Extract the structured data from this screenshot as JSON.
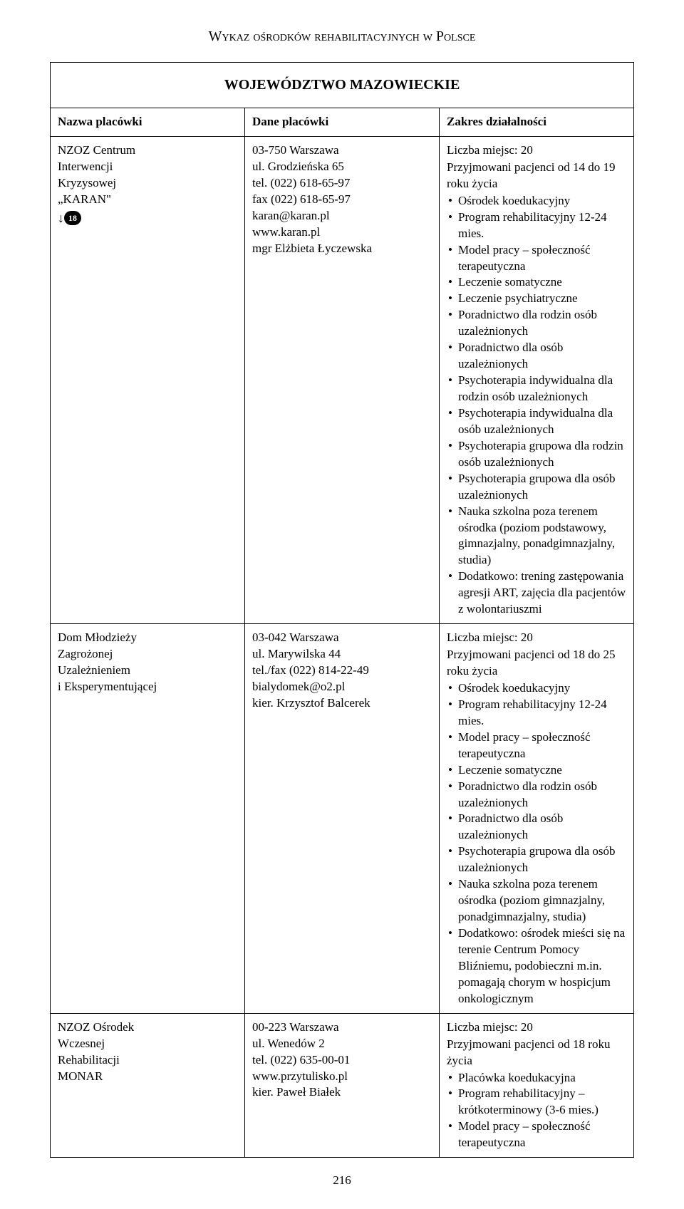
{
  "page_title": "Wykaz ośrodków rehabilitacyjnych w Polsce",
  "region": "WOJEWÓDZTWO MAZOWIECKIE",
  "headers": {
    "col1": "Nazwa placówki",
    "col2": "Dane placówki",
    "col3": "Zakres działalności"
  },
  "rows": [
    {
      "name_lines": [
        "NZOZ Centrum",
        "Interwencji",
        "Kryzysowej",
        "„KARAN\""
      ],
      "age_badge": {
        "arrow": "↓",
        "number": "18"
      },
      "details_lines": [
        "03-750 Warszawa",
        "ul. Grodzieńska 65",
        "tel. (022) 618-65-97",
        "fax (022) 618-65-97",
        "karan@karan.pl",
        "www.karan.pl",
        "mgr Elżbieta Łyczewska"
      ],
      "scope_intro": [
        "Liczba miejsc: 20",
        "Przyjmowani pacjenci od 14 do 19 roku życia"
      ],
      "scope_bullets": [
        "Ośrodek koedukacyjny",
        "Program rehabilitacyjny 12-24 mies.",
        "Model pracy – społeczność terapeutyczna",
        "Leczenie somatyczne",
        "Leczenie psychiatryczne",
        "Poradnictwo dla rodzin osób uzależnionych",
        "Poradnictwo dla osób uzależnionych",
        "Psychoterapia indywidualna dla rodzin osób uzależnionych",
        "Psychoterapia indywidualna dla osób uzależnionych",
        "Psychoterapia grupowa dla rodzin osób uzależnionych",
        "Psychoterapia grupowa dla osób uzależnionych",
        "Nauka szkolna poza terenem ośrodka (poziom podstawowy, gimnazjalny, ponadgimnazjalny, studia)",
        "Dodatkowo: trening zastępowania agresji ART, zajęcia dla pacjentów z wolontariuszmi"
      ]
    },
    {
      "name_lines": [
        "Dom Młodzieży",
        "Zagrożonej",
        "Uzależnieniem",
        "i Eksperymentującej"
      ],
      "details_lines": [
        "03-042 Warszawa",
        "ul. Marywilska 44",
        "tel./fax (022) 814-22-49",
        "bialydomek@o2.pl",
        "kier. Krzysztof Balcerek"
      ],
      "scope_intro": [
        "Liczba miejsc: 20",
        "Przyjmowani pacjenci od 18 do 25 roku życia"
      ],
      "scope_bullets": [
        "Ośrodek koedukacyjny",
        "Program rehabilitacyjny 12-24 mies.",
        "Model pracy – społeczność terapeutyczna",
        "Leczenie somatyczne",
        "Poradnictwo dla rodzin osób uzależnionych",
        "Poradnictwo dla osób uzależnionych",
        "Psychoterapia grupowa dla osób uzależnionych",
        "Nauka szkolna poza terenem ośrodka (poziom gimnazjalny, ponadgimnazjalny, studia)",
        "Dodatkowo: ośrodek mieści się na terenie Centrum Pomocy Bliźniemu, podobieczni m.in. pomagają chorym w hospicjum onkologicznym"
      ]
    },
    {
      "name_lines": [
        "NZOZ Ośrodek",
        "Wczesnej",
        "Rehabilitacji",
        "MONAR"
      ],
      "details_lines": [
        "00-223 Warszawa",
        "ul. Wenedów 2",
        "tel. (022) 635-00-01",
        "www.przytulisko.pl",
        "kier. Paweł Białek"
      ],
      "scope_intro": [
        "Liczba miejsc: 20",
        "Przyjmowani pacjenci od 18 roku życia"
      ],
      "scope_bullets": [
        "Placówka koedukacyjna",
        "Program rehabilitacyjny – krótkoterminowy (3-6 mies.)",
        "Model pracy – społeczność terapeutyczna"
      ]
    }
  ],
  "page_number": "216",
  "colors": {
    "text": "#000000",
    "background": "#ffffff",
    "border": "#000000",
    "badge_fill": "#000000",
    "badge_text": "#ffffff"
  }
}
